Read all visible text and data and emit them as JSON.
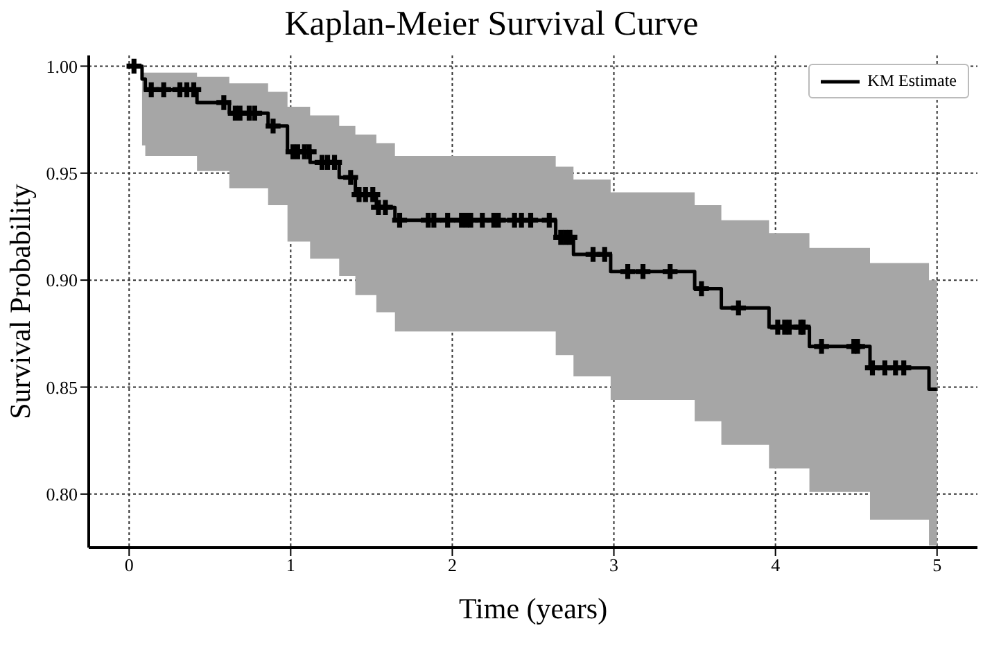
{
  "chart_data": {
    "type": "step",
    "title": "Kaplan-Meier Survival Curve",
    "xlabel": "Time (years)",
    "ylabel": "Survival Probability",
    "xlim": [
      -0.25,
      5.25
    ],
    "xticks": [
      0,
      1,
      2,
      3,
      4,
      5
    ],
    "ylim": [
      0.775,
      1.005
    ],
    "yticks": [
      {
        "value": 0.8,
        "label": "0.80"
      },
      {
        "value": 0.85,
        "label": "0.85"
      },
      {
        "value": 0.9,
        "label": "0.90"
      },
      {
        "value": 0.95,
        "label": "0.95"
      },
      {
        "value": 1.0,
        "label": "1.00"
      }
    ],
    "grid": true,
    "legend": "top right",
    "line_style": "solid",
    "series": [
      {
        "name": "KM Estimate",
        "color": "#000000",
        "marker": "none",
        "x": [
          0,
          0.08,
          0.1,
          0.42,
          0.62,
          0.86,
          0.98,
          1.12,
          1.3,
          1.4,
          1.53,
          1.645,
          2.64,
          2.75,
          2.98,
          3.5,
          3.665,
          3.96,
          4.21,
          4.585,
          4.95,
          5.0
        ],
        "values": [
          1.0,
          0.994,
          0.989,
          0.983,
          0.978,
          0.972,
          0.96,
          0.955,
          0.948,
          0.94,
          0.934,
          0.928,
          0.92,
          0.912,
          0.904,
          0.896,
          0.887,
          0.878,
          0.869,
          0.859,
          0.849,
          0.849
        ],
        "lower": [
          1.0,
          0.963,
          0.958,
          0.951,
          0.943,
          0.935,
          0.918,
          0.91,
          0.902,
          0.893,
          0.885,
          0.876,
          0.865,
          0.855,
          0.844,
          0.834,
          0.823,
          0.812,
          0.801,
          0.788,
          0.776,
          0.776
        ],
        "upper": [
          1.0,
          0.997,
          0.997,
          0.995,
          0.992,
          0.988,
          0.981,
          0.977,
          0.972,
          0.968,
          0.964,
          0.958,
          0.953,
          0.947,
          0.941,
          0.935,
          0.928,
          0.922,
          0.915,
          0.908,
          0.9,
          0.9
        ]
      },
      {
        "type": "scatter",
        "marker": "cross",
        "color": "#000000",
        "x": [
          0.03,
          0.137,
          0.214,
          0.314,
          0.357,
          0.4,
          0.586,
          0.657,
          0.686,
          0.743,
          0.777,
          0.891,
          1.014,
          1.043,
          1.085,
          1.114,
          1.194,
          1.228,
          1.271,
          1.371,
          1.423,
          1.463,
          1.508,
          1.543,
          1.586,
          1.674,
          1.851,
          1.886,
          1.971,
          2.057,
          2.086,
          2.114,
          2.186,
          2.257,
          2.285,
          2.385,
          2.428,
          2.485,
          2.6,
          2.671,
          2.7,
          2.728,
          2.871,
          2.943,
          3.086,
          3.18,
          3.348,
          3.542,
          3.771,
          4.014,
          4.057,
          4.085,
          4.157,
          4.171,
          4.285,
          4.485,
          4.508,
          4.6,
          4.677,
          4.743,
          4.794
        ],
        "values": [
          1.0,
          0.989,
          0.989,
          0.989,
          0.989,
          0.989,
          0.983,
          0.978,
          0.978,
          0.978,
          0.978,
          0.972,
          0.96,
          0.96,
          0.96,
          0.96,
          0.955,
          0.955,
          0.955,
          0.948,
          0.94,
          0.94,
          0.94,
          0.934,
          0.934,
          0.928,
          0.928,
          0.928,
          0.928,
          0.928,
          0.928,
          0.928,
          0.928,
          0.928,
          0.928,
          0.928,
          0.928,
          0.928,
          0.928,
          0.92,
          0.92,
          0.92,
          0.912,
          0.912,
          0.904,
          0.904,
          0.904,
          0.896,
          0.887,
          0.878,
          0.878,
          0.878,
          0.878,
          0.878,
          0.869,
          0.869,
          0.869,
          0.859,
          0.859,
          0.859,
          0.859
        ]
      }
    ]
  }
}
